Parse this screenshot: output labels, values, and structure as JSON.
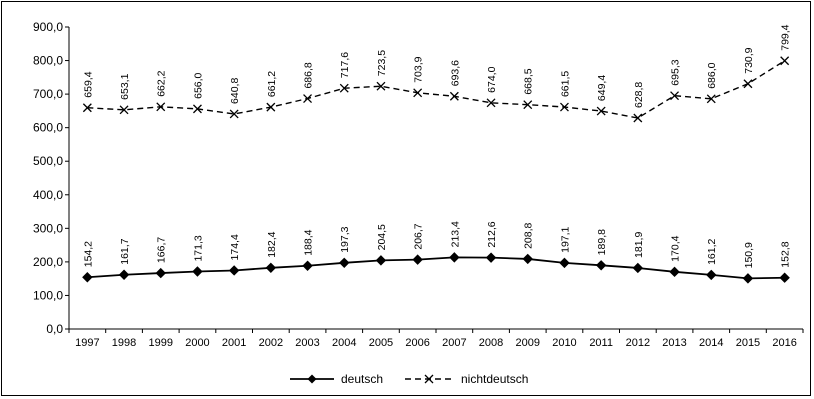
{
  "chart_data": {
    "type": "line",
    "title": "",
    "xlabel": "",
    "ylabel": "",
    "ylim": [
      0,
      900
    ],
    "yticks": [
      "0,0",
      "100,0",
      "200,0",
      "300,0",
      "400,0",
      "500,0",
      "600,0",
      "700,0",
      "800,0",
      "900,0"
    ],
    "grid": false,
    "legend_position": "bottom",
    "categories": [
      "1997",
      "1998",
      "1999",
      "2000",
      "2001",
      "2002",
      "2003",
      "2004",
      "2005",
      "2006",
      "2007",
      "2008",
      "2009",
      "2010",
      "2011",
      "2012",
      "2013",
      "2014",
      "2015",
      "2016"
    ],
    "series": [
      {
        "name": "deutsch",
        "color": "#000000",
        "marker": "diamond",
        "line_style": "solid",
        "values": [
          154.2,
          161.7,
          166.7,
          171.3,
          174.4,
          182.4,
          188.4,
          197.3,
          204.5,
          206.7,
          213.4,
          212.6,
          208.8,
          197.1,
          189.8,
          181.9,
          170.4,
          161.2,
          150.9,
          152.8
        ],
        "labels": [
          "154,2",
          "161,7",
          "166,7",
          "171,3",
          "174,4",
          "182,4",
          "188,4",
          "197,3",
          "204,5",
          "206,7",
          "213,4",
          "212,6",
          "208,8",
          "197,1",
          "189,8",
          "181,9",
          "170,4",
          "161,2",
          "150,9",
          "152,8"
        ]
      },
      {
        "name": "nichtdeutsch",
        "color": "#000000",
        "marker": "x",
        "line_style": "dashed",
        "values": [
          659.4,
          653.1,
          662.2,
          656.0,
          640.8,
          661.2,
          686.8,
          717.6,
          723.5,
          703.9,
          693.6,
          674.0,
          668.5,
          661.5,
          649.4,
          628.8,
          695.3,
          686.0,
          730.9,
          799.4
        ],
        "labels": [
          "659,4",
          "653,1",
          "662,2",
          "656,0",
          "640,8",
          "661,2",
          "686,8",
          "717,6",
          "723,5",
          "703,9",
          "693,6",
          "674,0",
          "668,5",
          "661,5",
          "649,4",
          "628,8",
          "695,3",
          "686,0",
          "730,9",
          "799,4"
        ]
      }
    ]
  }
}
